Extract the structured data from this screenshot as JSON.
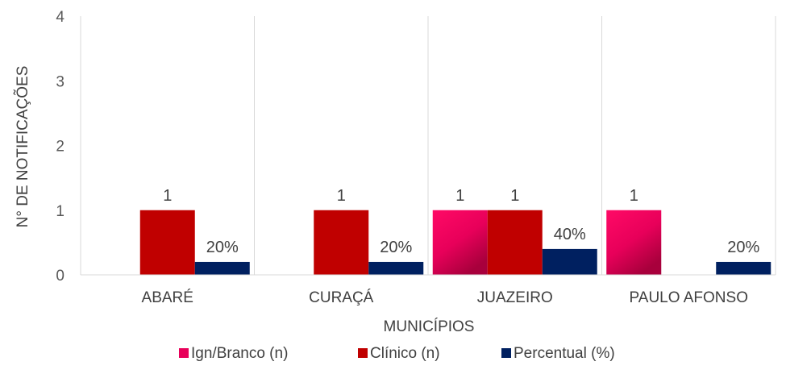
{
  "chart_data": {
    "type": "bar",
    "categories": [
      "ABARÉ",
      "CURAÇÁ",
      "JUAZEIRO",
      "PAULO AFONSO"
    ],
    "series": [
      {
        "name": "Ign/Branco (n)",
        "values": [
          0,
          0,
          1,
          1
        ],
        "labels": [
          "",
          "",
          "1",
          "1"
        ],
        "color": "#e8005a"
      },
      {
        "name": "Clínico (n)",
        "values": [
          1,
          1,
          1,
          0
        ],
        "labels": [
          "1",
          "1",
          "1",
          ""
        ],
        "color": "#c00000"
      },
      {
        "name": "Percentual (%)",
        "values": [
          0.2,
          0.2,
          0.4,
          0.2
        ],
        "labels": [
          "20%",
          "20%",
          "40%",
          "20%"
        ],
        "color": "#002060"
      }
    ],
    "xlabel": "MUNICÍPIOS",
    "ylabel": "N° DE NOTIFICAÇÕES",
    "ylim": [
      0,
      4
    ],
    "yticks": [
      "0",
      "1",
      "2",
      "3",
      "4"
    ],
    "grid": "vertical category separators",
    "legend": "bottom"
  }
}
